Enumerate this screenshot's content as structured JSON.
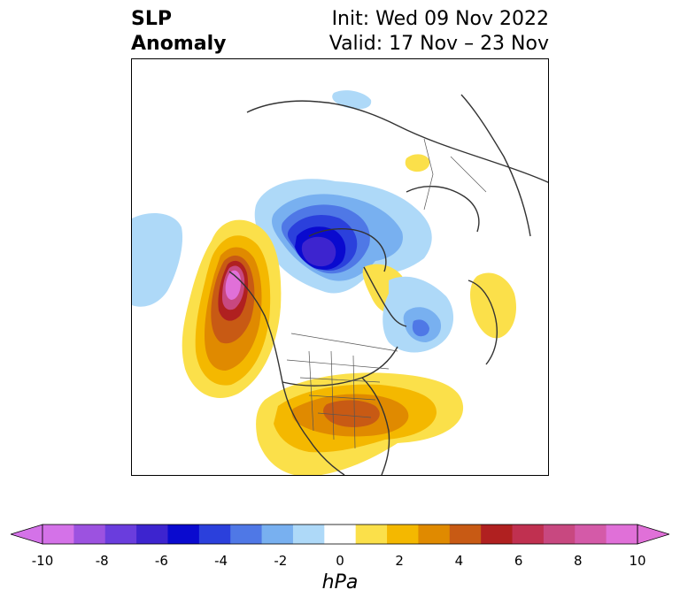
{
  "title": {
    "left_line1": "SLP",
    "left_line2": "Anomaly",
    "init": "Init: Wed 09 Nov 2022",
    "valid": "Valid: 17 Nov – 23 Nov"
  },
  "colorbar": {
    "ticks": [
      "-10",
      "-8",
      "-6",
      "-4",
      "-2",
      "0",
      "2",
      "4",
      "6",
      "8",
      "10"
    ],
    "units": "hPa",
    "colors": [
      "#d472e8",
      "#9c52e0",
      "#6a3ddd",
      "#3d24cf",
      "#0a0acf",
      "#2b40dc",
      "#4f78e6",
      "#78b0f0",
      "#aed9f8",
      "#ffffff",
      "#fbe04a",
      "#f4b800",
      "#e08a00",
      "#c85a14",
      "#b02020",
      "#c03050",
      "#c84880",
      "#d45aa8",
      "#e070d8"
    ],
    "under_color": "#d472e8",
    "over_color": "#e070d8"
  }
}
